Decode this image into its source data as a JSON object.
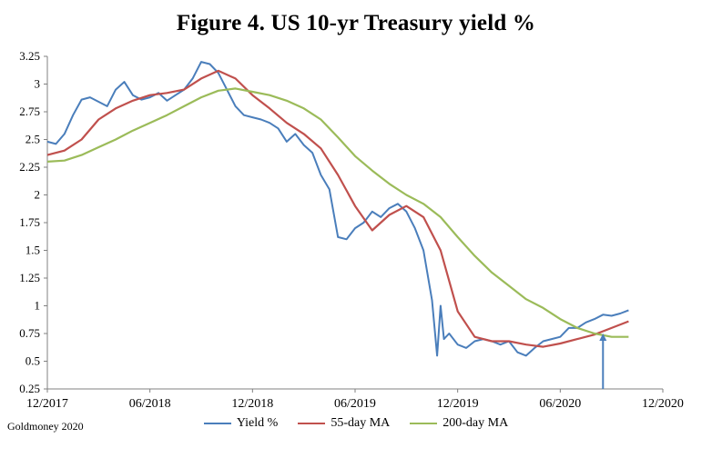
{
  "chart_data": {
    "type": "line",
    "title": "Figure 4. US 10-yr Treasury yield %",
    "source": "Goldmoney 2020",
    "y_ticks": [
      "3.25",
      "3",
      "2.75",
      "2.5",
      "2.25",
      "2",
      "1.75",
      "1.5",
      "1.25",
      "1",
      "0.75",
      "0.5",
      "0.25"
    ],
    "ylim": [
      0.25,
      3.25
    ],
    "x_ticks": [
      "12/2017",
      "06/2018",
      "12/2018",
      "06/2019",
      "12/2019",
      "06/2020",
      "12/2020"
    ],
    "x_unit": "months since 12/2017",
    "xlim": [
      0,
      36
    ],
    "grid": false,
    "legend_position": "bottom",
    "series": [
      {
        "name": "Yield %",
        "color": "#4a7ebb",
        "points": [
          [
            0,
            2.48
          ],
          [
            0.5,
            2.46
          ],
          [
            1,
            2.55
          ],
          [
            1.5,
            2.72
          ],
          [
            2,
            2.86
          ],
          [
            2.5,
            2.88
          ],
          [
            3,
            2.84
          ],
          [
            3.5,
            2.8
          ],
          [
            4,
            2.95
          ],
          [
            4.5,
            3.02
          ],
          [
            5,
            2.9
          ],
          [
            5.5,
            2.86
          ],
          [
            6,
            2.88
          ],
          [
            6.5,
            2.92
          ],
          [
            7,
            2.85
          ],
          [
            7.5,
            2.9
          ],
          [
            8,
            2.95
          ],
          [
            8.5,
            3.05
          ],
          [
            9,
            3.2
          ],
          [
            9.5,
            3.18
          ],
          [
            10,
            3.1
          ],
          [
            10.5,
            2.95
          ],
          [
            11,
            2.8
          ],
          [
            11.5,
            2.72
          ],
          [
            12,
            2.7
          ],
          [
            12.5,
            2.68
          ],
          [
            13,
            2.65
          ],
          [
            13.5,
            2.6
          ],
          [
            14,
            2.48
          ],
          [
            14.5,
            2.55
          ],
          [
            15,
            2.45
          ],
          [
            15.5,
            2.38
          ],
          [
            16,
            2.18
          ],
          [
            16.5,
            2.05
          ],
          [
            17,
            1.62
          ],
          [
            17.5,
            1.6
          ],
          [
            18,
            1.7
          ],
          [
            18.5,
            1.75
          ],
          [
            19,
            1.85
          ],
          [
            19.5,
            1.8
          ],
          [
            20,
            1.88
          ],
          [
            20.5,
            1.92
          ],
          [
            21,
            1.85
          ],
          [
            21.5,
            1.7
          ],
          [
            22,
            1.5
          ],
          [
            22.5,
            1.05
          ],
          [
            22.8,
            0.55
          ],
          [
            23,
            1.0
          ],
          [
            23.2,
            0.7
          ],
          [
            23.5,
            0.75
          ],
          [
            24,
            0.65
          ],
          [
            24.5,
            0.62
          ],
          [
            25,
            0.68
          ],
          [
            25.5,
            0.7
          ],
          [
            26,
            0.68
          ],
          [
            26.5,
            0.65
          ],
          [
            27,
            0.68
          ],
          [
            27.5,
            0.58
          ],
          [
            28,
            0.55
          ],
          [
            28.5,
            0.62
          ],
          [
            29,
            0.68
          ],
          [
            29.5,
            0.7
          ],
          [
            30,
            0.72
          ],
          [
            30.5,
            0.8
          ],
          [
            31,
            0.8
          ],
          [
            31.5,
            0.85
          ],
          [
            32,
            0.88
          ],
          [
            32.5,
            0.92
          ],
          [
            33,
            0.91
          ],
          [
            33.5,
            0.93
          ],
          [
            34,
            0.96
          ]
        ]
      },
      {
        "name": "55-day MA",
        "color": "#c0504d",
        "points": [
          [
            0,
            2.36
          ],
          [
            1,
            2.4
          ],
          [
            2,
            2.5
          ],
          [
            3,
            2.68
          ],
          [
            4,
            2.78
          ],
          [
            5,
            2.85
          ],
          [
            6,
            2.9
          ],
          [
            7,
            2.92
          ],
          [
            8,
            2.95
          ],
          [
            9,
            3.05
          ],
          [
            10,
            3.12
          ],
          [
            11,
            3.05
          ],
          [
            12,
            2.9
          ],
          [
            13,
            2.78
          ],
          [
            14,
            2.65
          ],
          [
            15,
            2.55
          ],
          [
            16,
            2.42
          ],
          [
            17,
            2.18
          ],
          [
            18,
            1.9
          ],
          [
            19,
            1.68
          ],
          [
            20,
            1.82
          ],
          [
            21,
            1.9
          ],
          [
            22,
            1.8
          ],
          [
            23,
            1.5
          ],
          [
            24,
            0.95
          ],
          [
            25,
            0.72
          ],
          [
            26,
            0.68
          ],
          [
            27,
            0.68
          ],
          [
            28,
            0.65
          ],
          [
            29,
            0.63
          ],
          [
            30,
            0.66
          ],
          [
            31,
            0.7
          ],
          [
            32,
            0.74
          ],
          [
            33,
            0.8
          ],
          [
            34,
            0.86
          ]
        ]
      },
      {
        "name": "200-day MA",
        "color": "#9bbb59",
        "points": [
          [
            0,
            2.3
          ],
          [
            1,
            2.31
          ],
          [
            2,
            2.36
          ],
          [
            3,
            2.43
          ],
          [
            4,
            2.5
          ],
          [
            5,
            2.58
          ],
          [
            6,
            2.65
          ],
          [
            7,
            2.72
          ],
          [
            8,
            2.8
          ],
          [
            9,
            2.88
          ],
          [
            10,
            2.94
          ],
          [
            11,
            2.96
          ],
          [
            12,
            2.93
          ],
          [
            13,
            2.9
          ],
          [
            14,
            2.85
          ],
          [
            15,
            2.78
          ],
          [
            16,
            2.68
          ],
          [
            17,
            2.52
          ],
          [
            18,
            2.35
          ],
          [
            19,
            2.22
          ],
          [
            20,
            2.1
          ],
          [
            21,
            2.0
          ],
          [
            22,
            1.92
          ],
          [
            23,
            1.8
          ],
          [
            24,
            1.62
          ],
          [
            25,
            1.45
          ],
          [
            26,
            1.3
          ],
          [
            27,
            1.18
          ],
          [
            28,
            1.06
          ],
          [
            29,
            0.98
          ],
          [
            30,
            0.88
          ],
          [
            31,
            0.8
          ],
          [
            32,
            0.75
          ],
          [
            33,
            0.72
          ],
          [
            34,
            0.72
          ]
        ]
      }
    ],
    "annotations": [
      {
        "type": "arrow",
        "x": 32.5,
        "y_from": 0.25,
        "y_to": 0.75,
        "color": "#4a7ebb"
      }
    ]
  }
}
